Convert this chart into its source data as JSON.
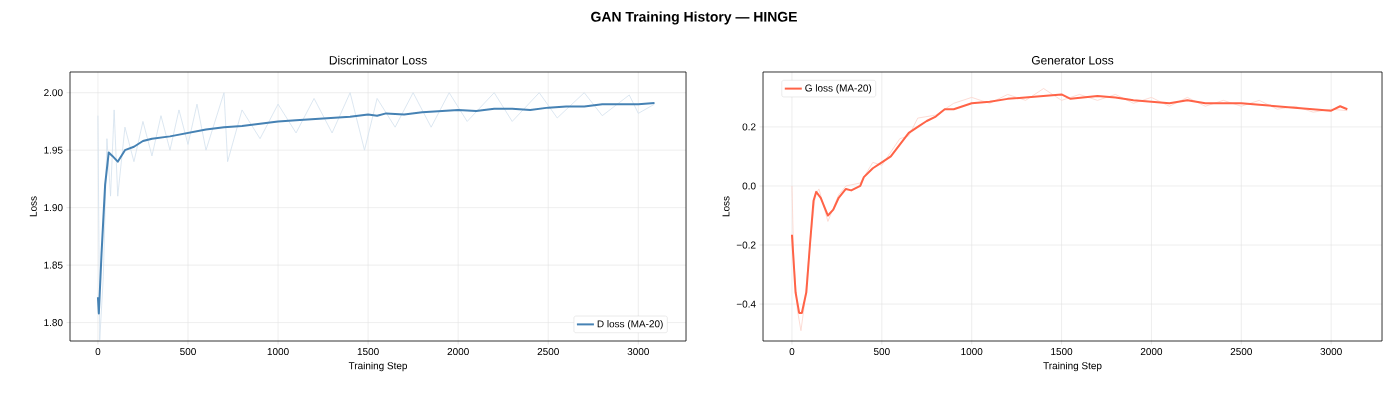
{
  "chart_data": [
    {
      "type": "line",
      "title": "Discriminator Loss",
      "annotations": [
        "GAN Training History — HINGE"
      ],
      "xlabel": "Training Step",
      "ylabel": "Loss",
      "xlim": [
        -155,
        3265
      ],
      "ylim": [
        1.784,
        2.018
      ],
      "xticks": [
        0,
        500,
        1000,
        1500,
        2000,
        2500,
        3000
      ],
      "yticks": [
        {
          "value": 1.8,
          "label": "1.80"
        },
        {
          "value": 1.85,
          "label": "1.85"
        },
        {
          "value": 1.9,
          "label": "1.90"
        },
        {
          "value": 1.95,
          "label": "1.95"
        },
        {
          "value": 2.0,
          "label": "2.00"
        }
      ],
      "grid": true,
      "legend": "bottom right",
      "series": [
        {
          "color": "#d3e1ee",
          "x": [
            0,
            10,
            30,
            50,
            70,
            90,
            110,
            150,
            200,
            250,
            300,
            350,
            400,
            450,
            500,
            550,
            600,
            700,
            720,
            800,
            900,
            1000,
            1100,
            1200,
            1300,
            1400,
            1480,
            1550,
            1650,
            1750,
            1850,
            1950,
            2050,
            2200,
            2300,
            2450,
            2550,
            2700,
            2800,
            2950,
            3000,
            3090
          ],
          "values": [
            1.98,
            1.785,
            1.84,
            1.96,
            1.91,
            1.985,
            1.91,
            1.97,
            1.94,
            1.975,
            1.945,
            1.98,
            1.95,
            1.985,
            1.955,
            1.99,
            1.95,
            2.0,
            1.94,
            1.985,
            1.96,
            1.99,
            1.965,
            1.995,
            1.965,
            2.0,
            1.95,
            1.995,
            1.97,
            2.0,
            1.97,
            2.0,
            1.975,
            2.0,
            1.975,
            2.0,
            1.978,
            2.0,
            1.98,
            1.998,
            1.982,
            1.99
          ]
        },
        {
          "name": "D loss (MA-20)",
          "color": "#4682b4",
          "x": [
            0,
            5,
            20,
            40,
            60,
            80,
            110,
            150,
            200,
            250,
            300,
            400,
            500,
            600,
            700,
            800,
            900,
            1000,
            1100,
            1200,
            1300,
            1400,
            1500,
            1550,
            1600,
            1700,
            1800,
            1900,
            2000,
            2100,
            2200,
            2300,
            2400,
            2500,
            2600,
            2700,
            2800,
            2900,
            3000,
            3090
          ],
          "values": [
            1.822,
            1.808,
            1.86,
            1.92,
            1.948,
            1.945,
            1.94,
            1.95,
            1.953,
            1.958,
            1.96,
            1.962,
            1.965,
            1.968,
            1.97,
            1.971,
            1.973,
            1.975,
            1.976,
            1.977,
            1.978,
            1.979,
            1.981,
            1.98,
            1.982,
            1.981,
            1.983,
            1.984,
            1.985,
            1.984,
            1.986,
            1.986,
            1.985,
            1.987,
            1.988,
            1.988,
            1.99,
            1.99,
            1.99,
            1.991
          ]
        }
      ]
    },
    {
      "type": "line",
      "title": "Generator Loss",
      "xlabel": "Training Step",
      "ylabel": "Loss",
      "xlim": [
        -161,
        3283
      ],
      "ylim": [
        -0.525,
        0.386
      ],
      "xticks": [
        0,
        500,
        1000,
        1500,
        2000,
        2500,
        3000
      ],
      "yticks": [
        {
          "value": -0.4,
          "label": "−0.4"
        },
        {
          "value": -0.2,
          "label": "−0.2"
        },
        {
          "value": 0,
          "label": "0.0"
        },
        {
          "value": 0.2,
          "label": "0.2"
        }
      ],
      "grid": true,
      "legend": "top left",
      "series": [
        {
          "color": "#fbd3ca",
          "x": [
            0,
            10,
            30,
            50,
            70,
            100,
            130,
            150,
            200,
            260,
            300,
            380,
            450,
            500,
            600,
            650,
            700,
            800,
            900,
            1000,
            1100,
            1200,
            1300,
            1400,
            1500,
            1600,
            1700,
            1800,
            1900,
            2000,
            2100,
            2200,
            2300,
            2400,
            2500,
            2600,
            2700,
            2800,
            2900,
            3000,
            3090
          ],
          "values": [
            0.0,
            -0.25,
            -0.42,
            -0.49,
            -0.4,
            -0.2,
            -0.03,
            -0.01,
            -0.12,
            -0.03,
            0.0,
            0.01,
            0.08,
            0.07,
            0.16,
            0.17,
            0.23,
            0.24,
            0.28,
            0.3,
            0.28,
            0.31,
            0.29,
            0.33,
            0.29,
            0.31,
            0.29,
            0.31,
            0.28,
            0.3,
            0.27,
            0.3,
            0.27,
            0.29,
            0.27,
            0.29,
            0.26,
            0.27,
            0.25,
            0.26,
            0.255
          ]
        },
        {
          "name": "G loss (MA-20)",
          "color": "#ff6347",
          "x": [
            0,
            20,
            40,
            55,
            80,
            100,
            120,
            135,
            160,
            200,
            230,
            260,
            300,
            330,
            380,
            400,
            450,
            500,
            550,
            600,
            650,
            700,
            750,
            800,
            850,
            900,
            950,
            1000,
            1100,
            1200,
            1300,
            1400,
            1500,
            1550,
            1700,
            1800,
            1900,
            2000,
            2100,
            2200,
            2300,
            2400,
            2500,
            2600,
            2700,
            2800,
            2900,
            3000,
            3050,
            3090
          ],
          "values": [
            -0.165,
            -0.36,
            -0.43,
            -0.43,
            -0.36,
            -0.2,
            -0.05,
            -0.02,
            -0.04,
            -0.1,
            -0.08,
            -0.04,
            -0.01,
            -0.015,
            0.0,
            0.03,
            0.06,
            0.08,
            0.1,
            0.14,
            0.18,
            0.2,
            0.22,
            0.235,
            0.26,
            0.26,
            0.27,
            0.28,
            0.285,
            0.295,
            0.3,
            0.305,
            0.31,
            0.295,
            0.305,
            0.3,
            0.29,
            0.285,
            0.28,
            0.29,
            0.28,
            0.28,
            0.28,
            0.275,
            0.27,
            0.265,
            0.26,
            0.255,
            0.27,
            0.26
          ]
        }
      ]
    }
  ]
}
